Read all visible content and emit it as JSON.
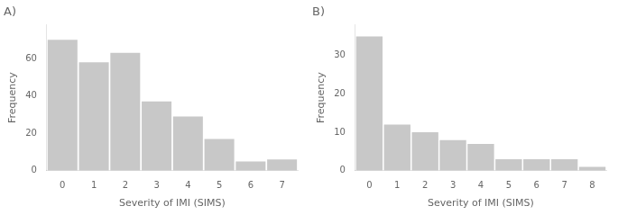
{
  "chart_data": [
    {
      "type": "bar",
      "title": "A)",
      "categories": [
        "0",
        "1",
        "2",
        "3",
        "4",
        "5",
        "6",
        "7"
      ],
      "values": [
        70,
        58,
        63,
        37,
        29,
        17,
        5,
        6
      ],
      "xlabel": "Severity of IMI (SIMS)",
      "ylabel": "Frequency",
      "ylim": [
        0,
        78
      ],
      "yticks": [
        0,
        20,
        40,
        60
      ],
      "color": "#c8c8c8",
      "grid": false,
      "legend": false
    },
    {
      "type": "bar",
      "title": "B)",
      "categories": [
        "0",
        "1",
        "2",
        "3",
        "4",
        "5",
        "6",
        "7",
        "8"
      ],
      "values": [
        35,
        12,
        10,
        8,
        7,
        3,
        3,
        3,
        1
      ],
      "xlabel": "Severity of IMI (SIMS)",
      "ylabel": "Frequency",
      "ylim": [
        0,
        38
      ],
      "yticks": [
        0,
        10,
        20,
        30
      ],
      "color": "#c8c8c8",
      "grid": false,
      "legend": false
    }
  ]
}
